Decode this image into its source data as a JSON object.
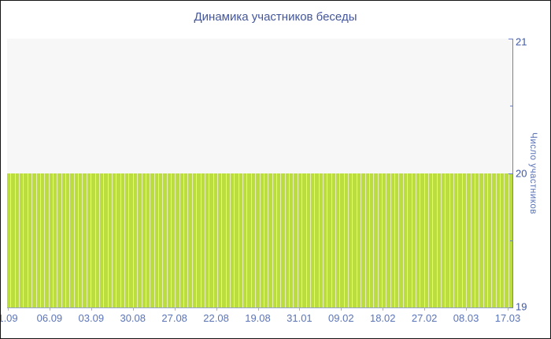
{
  "colors": {
    "title_text": "#44569b",
    "x_tick_text": "#5b74b8",
    "y_tick_text": "#3f57a0",
    "y_axis_title_text": "#5b74b8",
    "bar_fill": "#bcdd3e",
    "bar_gap": "#e7f0b2",
    "plot_background": "#f7f7f7",
    "y_axis_line": "#6b80c4",
    "x_axis_line": "#93a0cb",
    "frame_border": "#141414"
  },
  "chart_data": {
    "type": "bar",
    "title": "Динамика участников беседы",
    "xlabel": "",
    "ylabel": "Число участников",
    "x_tick_labels": [
      "1.09",
      "06.09",
      "03.09",
      "30.08",
      "27.08",
      "22.08",
      "19.08",
      "31.01",
      "09.02",
      "18.02",
      "27.02",
      "08.03",
      "17.03"
    ],
    "y_tick_labels": [
      "19",
      "20",
      "21"
    ],
    "y_tick_values": [
      19,
      20,
      21
    ],
    "y_minor_tick_values": [
      19.5,
      20.5
    ],
    "ylim": [
      19,
      21
    ],
    "grid": "off",
    "legend": "none",
    "series": [
      {
        "name": "Число участников",
        "uniform_value": 20,
        "point_count": 120,
        "note": "every daily bar has the same value"
      }
    ]
  }
}
